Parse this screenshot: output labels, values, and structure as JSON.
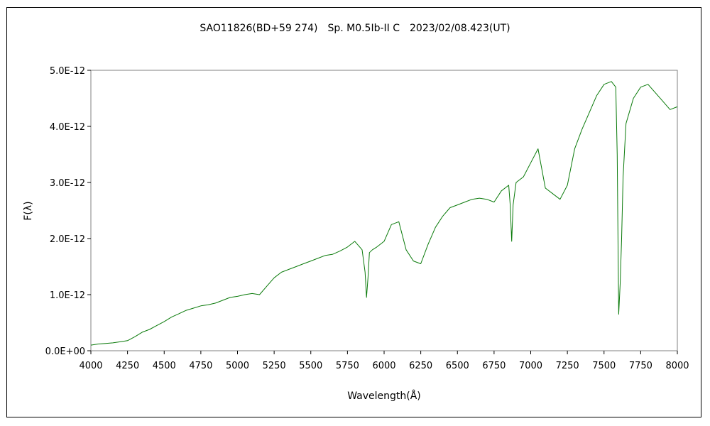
{
  "chart_data": {
    "type": "line",
    "title": "SAO11826(BD+59 274)　Sp. M0.5Ib-II C　2023/02/08.423(UT)",
    "xlabel": "Wavelength(Å)",
    "ylabel": "F(λ)",
    "xlim": [
      4000,
      8000
    ],
    "ylim": [
      0,
      5e-12
    ],
    "x_ticks": [
      4000,
      4250,
      4500,
      4750,
      5000,
      5250,
      5500,
      5750,
      6000,
      6250,
      6500,
      6750,
      7000,
      7250,
      7500,
      7750,
      8000
    ],
    "x_tick_labels": [
      "4000",
      "4250",
      "4500",
      "4750",
      "5000",
      "5250",
      "5500",
      "5750",
      "6000",
      "6250",
      "6500",
      "6750",
      "7000",
      "7250",
      "7500",
      "7750",
      "8000"
    ],
    "y_ticks": [
      0,
      1e-12,
      2e-12,
      3e-12,
      4e-12,
      5e-12
    ],
    "y_tick_labels": [
      "0.0E+00",
      "1.0E-12",
      "2.0E-12",
      "3.0E-12",
      "4.0E-12",
      "5.0E-12"
    ],
    "grid": false,
    "legend": "none",
    "series": [
      {
        "color": "#0a7a0a",
        "x": [
          4000,
          4050,
          4100,
          4150,
          4200,
          4250,
          4300,
          4350,
          4400,
          4450,
          4500,
          4550,
          4600,
          4650,
          4700,
          4750,
          4800,
          4850,
          4900,
          4950,
          5000,
          5050,
          5100,
          5150,
          5200,
          5250,
          5300,
          5350,
          5400,
          5450,
          5500,
          5550,
          5600,
          5650,
          5700,
          5750,
          5800,
          5850,
          5870,
          5880,
          5890,
          5900,
          5920,
          5950,
          6000,
          6050,
          6100,
          6150,
          6200,
          6250,
          6300,
          6350,
          6400,
          6450,
          6500,
          6550,
          6600,
          6650,
          6700,
          6750,
          6800,
          6850,
          6860,
          6870,
          6880,
          6900,
          6950,
          7000,
          7050,
          7100,
          7150,
          7200,
          7250,
          7300,
          7350,
          7400,
          7450,
          7500,
          7550,
          7580,
          7590,
          7600,
          7610,
          7620,
          7630,
          7650,
          7700,
          7750,
          7800,
          7850,
          7900,
          7950,
          8000
        ],
        "y": [
          1e-13,
          1.2e-13,
          1.3e-13,
          1.4e-13,
          1.6e-13,
          1.8e-13,
          2.5e-13,
          3.3e-13,
          3.8e-13,
          4.5e-13,
          5.2e-13,
          6e-13,
          6.6e-13,
          7.2e-13,
          7.6e-13,
          8e-13,
          8.2e-13,
          8.5e-13,
          9e-13,
          9.5e-13,
          9.7e-13,
          1e-12,
          1.02e-12,
          1e-12,
          1.15e-12,
          1.3e-12,
          1.4e-12,
          1.45e-12,
          1.5e-12,
          1.55e-12,
          1.6e-12,
          1.65e-12,
          1.7e-12,
          1.72e-12,
          1.78e-12,
          1.85e-12,
          1.95e-12,
          1.8e-12,
          1.4e-12,
          9.5e-13,
          1.3e-12,
          1.75e-12,
          1.8e-12,
          1.85e-12,
          1.95e-12,
          2.25e-12,
          2.3e-12,
          1.8e-12,
          1.6e-12,
          1.55e-12,
          1.9e-12,
          2.2e-12,
          2.4e-12,
          2.55e-12,
          2.6e-12,
          2.65e-12,
          2.7e-12,
          2.72e-12,
          2.7e-12,
          2.65e-12,
          2.85e-12,
          2.95e-12,
          2.6e-12,
          1.95e-12,
          2.6e-12,
          3e-12,
          3.1e-12,
          3.35e-12,
          3.6e-12,
          2.9e-12,
          2.8e-12,
          2.7e-12,
          2.95e-12,
          3.6e-12,
          3.95e-12,
          4.25e-12,
          4.55e-12,
          4.75e-12,
          4.8e-12,
          4.7e-12,
          3.5e-12,
          6.5e-13,
          1.2e-12,
          2e-12,
          3.1e-12,
          4.05e-12,
          4.5e-12,
          4.7e-12,
          4.75e-12,
          4.6e-12,
          4.45e-12,
          4.3e-12,
          4.35e-12
        ]
      }
    ]
  }
}
